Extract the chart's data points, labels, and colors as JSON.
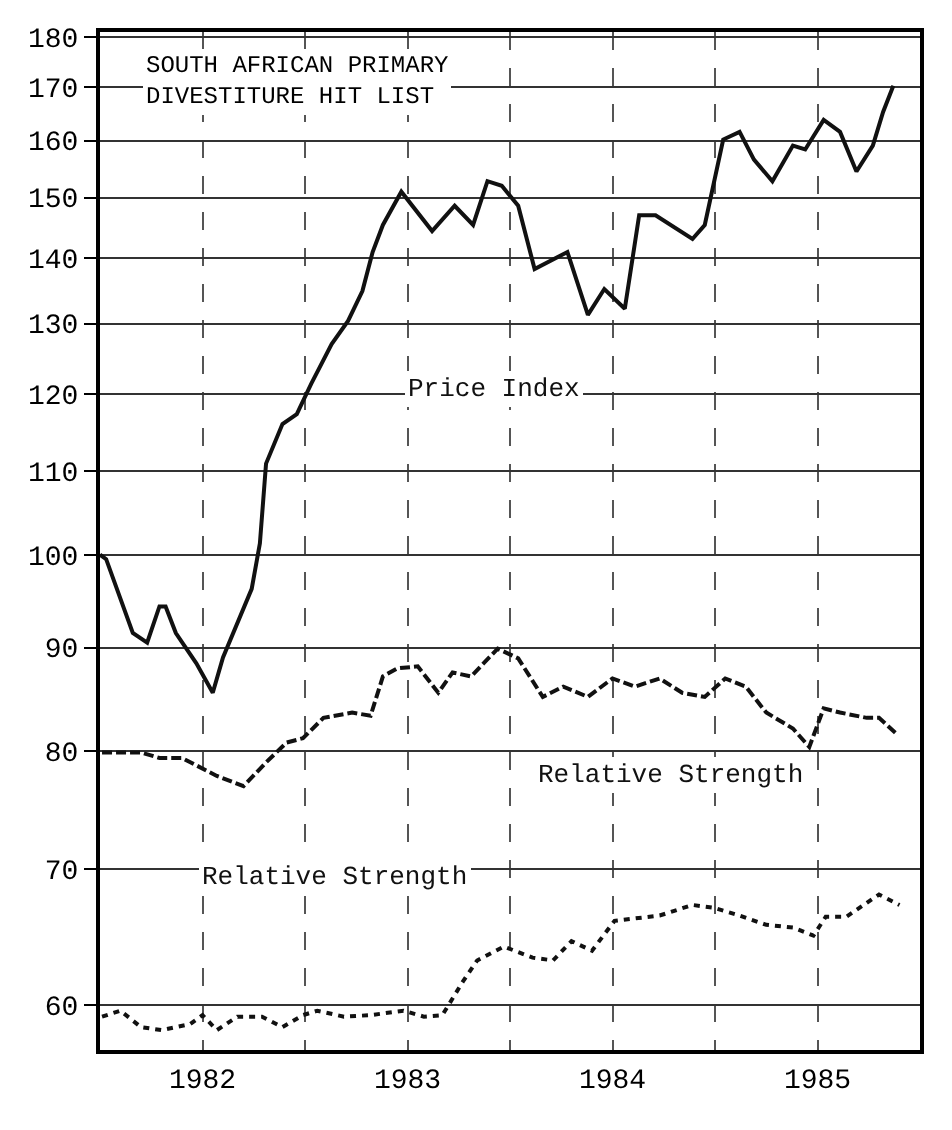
{
  "chart_data": {
    "type": "line",
    "title": "SOUTH AFRICAN PRIMARY\nDIVESTITURE HIT LIST",
    "log": true,
    "grid": true,
    "legend": false,
    "marker": "none",
    "xlim": [
      1982,
      1986
    ],
    "xticks": [
      {
        "value": 1982,
        "label": null
      },
      {
        "value": 1982.5,
        "label": "1982"
      },
      {
        "value": 1983,
        "label": null
      },
      {
        "value": 1983.5,
        "label": "1983"
      },
      {
        "value": 1984,
        "label": null
      },
      {
        "value": 1984.5,
        "label": "1984"
      },
      {
        "value": 1985,
        "label": null
      },
      {
        "value": 1985.5,
        "label": "1985"
      },
      {
        "value": 1986,
        "label": null
      }
    ],
    "ylim": [
      57,
      181
    ],
    "yticks": [
      60,
      70,
      80,
      90,
      100,
      110,
      120,
      130,
      140,
      150,
      160,
      170,
      180
    ],
    "series": [
      {
        "name": "Price Index",
        "color": "#111111",
        "line_style": "solid",
        "x": [
          1982.0,
          1982.03,
          1982.16,
          1982.23,
          1982.29,
          1982.32,
          1982.37,
          1982.47,
          1982.55,
          1982.6,
          1982.74,
          1982.78,
          1982.81,
          1982.89,
          1982.96,
          1983.03,
          1983.13,
          1983.21,
          1983.28,
          1983.33,
          1983.38,
          1983.47,
          1983.62,
          1983.73,
          1983.82,
          1983.89,
          1983.96,
          1984.04,
          1984.12,
          1984.28,
          1984.38,
          1984.46,
          1984.56,
          1984.63,
          1984.71,
          1984.89,
          1984.95,
          1985.04,
          1985.12,
          1985.19,
          1985.28,
          1985.38,
          1985.44,
          1985.53,
          1985.61,
          1985.69,
          1985.77,
          1985.82,
          1985.87
        ],
        "values": [
          100,
          99.5,
          91.5,
          90.5,
          94.3,
          94.3,
          91.5,
          88.4,
          85.5,
          89,
          96.2,
          101.3,
          110.9,
          116,
          117.3,
          121.4,
          127,
          130.4,
          134.9,
          141,
          145.4,
          151,
          144.4,
          148.6,
          145.4,
          152.8,
          152,
          148.6,
          138.3,
          141,
          131.3,
          135.2,
          132.2,
          147,
          147,
          143.1,
          145.4,
          160.2,
          161.6,
          156.6,
          152.8,
          159.1,
          158.4,
          163.8,
          161.6,
          154.5,
          159.1,
          165.3,
          170.3
        ]
      },
      {
        "name": "Relative Strength",
        "color": "#111111",
        "line_style": "dashed",
        "x": [
          1982.01,
          1982.2,
          1982.29,
          1982.4,
          1982.57,
          1982.7,
          1982.81,
          1982.91,
          1982.99,
          1983.09,
          1983.23,
          1983.32,
          1983.38,
          1983.45,
          1983.55,
          1983.65,
          1983.72,
          1983.81,
          1983.94,
          1984.04,
          1984.16,
          1984.26,
          1984.38,
          1984.5,
          1984.61,
          1984.73,
          1984.84,
          1984.95,
          1985.05,
          1985.15,
          1985.25,
          1985.38,
          1985.46,
          1985.53,
          1985.61,
          1985.74,
          1985.8,
          1985.88
        ],
        "values": [
          79.9,
          79.9,
          79.4,
          79.4,
          77.8,
          76.9,
          79,
          80.8,
          81.2,
          83.1,
          83.6,
          83.3,
          87.1,
          87.9,
          88.1,
          85.5,
          87.5,
          87.1,
          89.9,
          88.9,
          85.1,
          86.1,
          85.1,
          86.9,
          86.1,
          86.9,
          85.5,
          85.1,
          86.9,
          86.1,
          83.6,
          82.1,
          80.4,
          84,
          83.6,
          83.1,
          83.1,
          81.7
        ]
      },
      {
        "name": "Relative Strength",
        "color": "#111111",
        "line_style": "dotted",
        "x": [
          1982.01,
          1982.1,
          1982.2,
          1982.3,
          1982.44,
          1982.5,
          1982.57,
          1982.67,
          1982.79,
          1982.89,
          1982.99,
          1983.06,
          1983.19,
          1983.32,
          1983.48,
          1983.58,
          1983.67,
          1983.77,
          1983.84,
          1983.97,
          1984.11,
          1984.21,
          1984.3,
          1984.4,
          1984.51,
          1984.73,
          1984.89,
          1984.99,
          1985.12,
          1985.25,
          1985.38,
          1985.48,
          1985.54,
          1985.64,
          1985.8,
          1985.9
        ],
        "values": [
          59.2,
          59.6,
          58.5,
          58.3,
          58.7,
          59.3,
          58.3,
          59.2,
          59.2,
          58.5,
          59.3,
          59.6,
          59.2,
          59.3,
          59.6,
          59.2,
          59.3,
          61.6,
          63.1,
          64.1,
          63.3,
          63.1,
          64.5,
          63.8,
          66,
          66.4,
          67.2,
          67,
          66.4,
          65.7,
          65.5,
          64.9,
          66.3,
          66.3,
          68,
          67.2
        ]
      }
    ]
  }
}
